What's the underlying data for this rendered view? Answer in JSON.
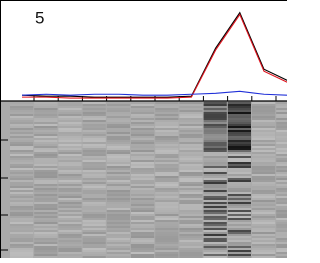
{
  "chart_data": {
    "type": "line",
    "annotation": "5",
    "categories": [
      null,
      null,
      null,
      null,
      null,
      null,
      null,
      null,
      null,
      null,
      null,
      null
    ],
    "series": [
      {
        "color": "#000000",
        "values": [
          5,
          4,
          4,
          3,
          3,
          3,
          3,
          4,
          54,
          91,
          32,
          20
        ]
      },
      {
        "color": "#e0141e",
        "values": [
          3,
          3,
          2,
          2,
          2,
          2,
          2,
          3,
          52,
          89,
          30,
          18
        ]
      },
      {
        "color": "#2030d8",
        "values": [
          5,
          6,
          5,
          6,
          6,
          5,
          5,
          6,
          7,
          9,
          6,
          5
        ]
      }
    ],
    "ylim": [
      0,
      100
    ]
  }
}
